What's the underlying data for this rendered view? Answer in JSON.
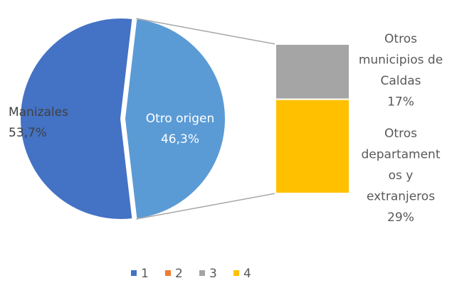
{
  "chart_data": {
    "type": "pie-of-bar",
    "pie": {
      "categories": [
        "Manizales",
        "Otro origen"
      ],
      "values": [
        53.7,
        46.3
      ],
      "value_labels": [
        "53,7%",
        "46,3%"
      ],
      "colors": [
        "#4472c4",
        "#5b9bd5"
      ]
    },
    "bar": {
      "label_lines": [
        [
          "Otros",
          "municipios de",
          "Caldas"
        ],
        [
          "Otros",
          "departament",
          "os y",
          "extranjeros"
        ]
      ],
      "values": [
        17,
        29
      ],
      "value_labels": [
        "17%",
        "29%"
      ],
      "colors": [
        "#a5a5a5",
        "#ffc000"
      ]
    },
    "legend": {
      "names": [
        "1",
        "2",
        "3",
        "4"
      ],
      "colors": [
        "#4472c4",
        "#ed7d31",
        "#a5a5a5",
        "#ffc000"
      ]
    }
  }
}
